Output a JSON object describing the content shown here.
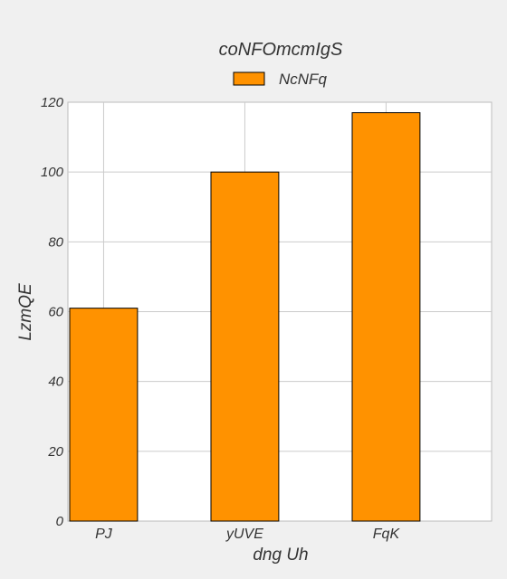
{
  "chart_data": {
    "type": "bar",
    "title": "coNFOmcmIgS",
    "xlabel": "dng Uh",
    "ylabel": "LzmQE",
    "categories": [
      "PJ",
      "yUVE",
      "FqK"
    ],
    "series": [
      {
        "name": "NcNFq",
        "values": [
          61,
          100,
          117
        ],
        "color": "#ff9200"
      }
    ],
    "ylim": [
      0,
      120
    ],
    "yticks": [
      0,
      20,
      40,
      60,
      80,
      100,
      120
    ],
    "grid": true,
    "legend_position": "top-center"
  }
}
